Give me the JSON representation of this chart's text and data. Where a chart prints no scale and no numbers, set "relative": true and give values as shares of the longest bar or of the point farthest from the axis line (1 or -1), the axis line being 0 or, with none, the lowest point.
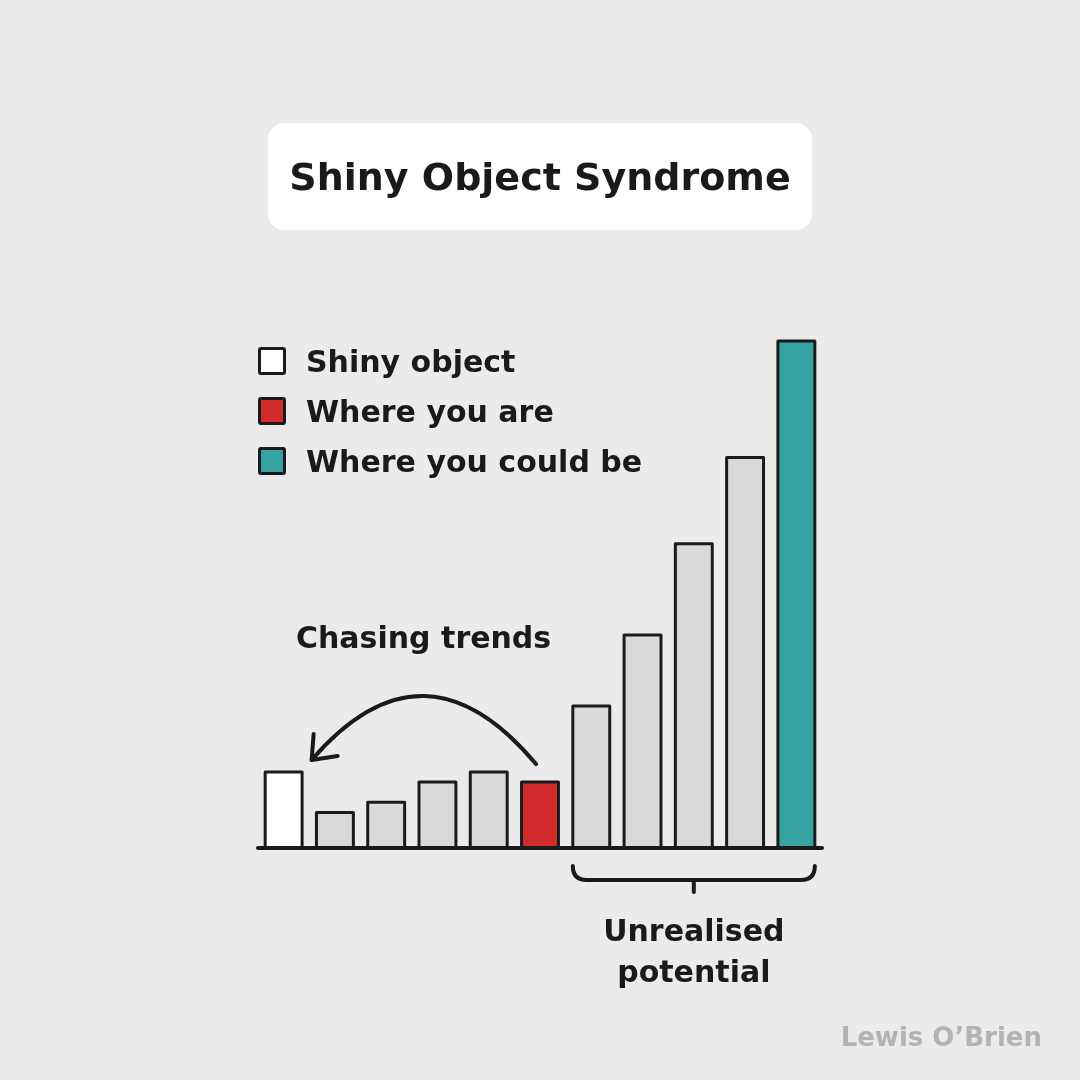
{
  "chart_data": {
    "type": "bar",
    "title": "Shiny Object Syndrome",
    "relative": true,
    "stacked": true,
    "tick_labels": false,
    "legend": "top left",
    "categories": [
      null,
      null,
      null,
      null,
      null,
      null,
      null,
      null,
      null,
      null,
      null
    ],
    "series": [
      {
        "name": "Shiny object",
        "color": "#ffffff",
        "values": [
          0.15,
          null,
          null,
          null,
          null,
          null,
          null,
          null,
          null,
          null,
          null
        ]
      },
      {
        "color": "#d9d9d9",
        "values": [
          null,
          0.07,
          0.09,
          0.13,
          0.15,
          null,
          0.28,
          0.42,
          0.6,
          0.77,
          null
        ]
      },
      {
        "name": "Where you are",
        "color": "#d12b2b",
        "values": [
          null,
          null,
          null,
          null,
          null,
          0.13,
          null,
          null,
          null,
          null,
          null
        ]
      },
      {
        "name": "Where you could be",
        "color": "#36a3a3",
        "values": [
          null,
          null,
          null,
          null,
          null,
          null,
          null,
          null,
          null,
          null,
          1
        ]
      }
    ],
    "annotations": [
      "Chasing trends",
      "Unrealised potential",
      "Lewis O’Brien"
    ]
  }
}
